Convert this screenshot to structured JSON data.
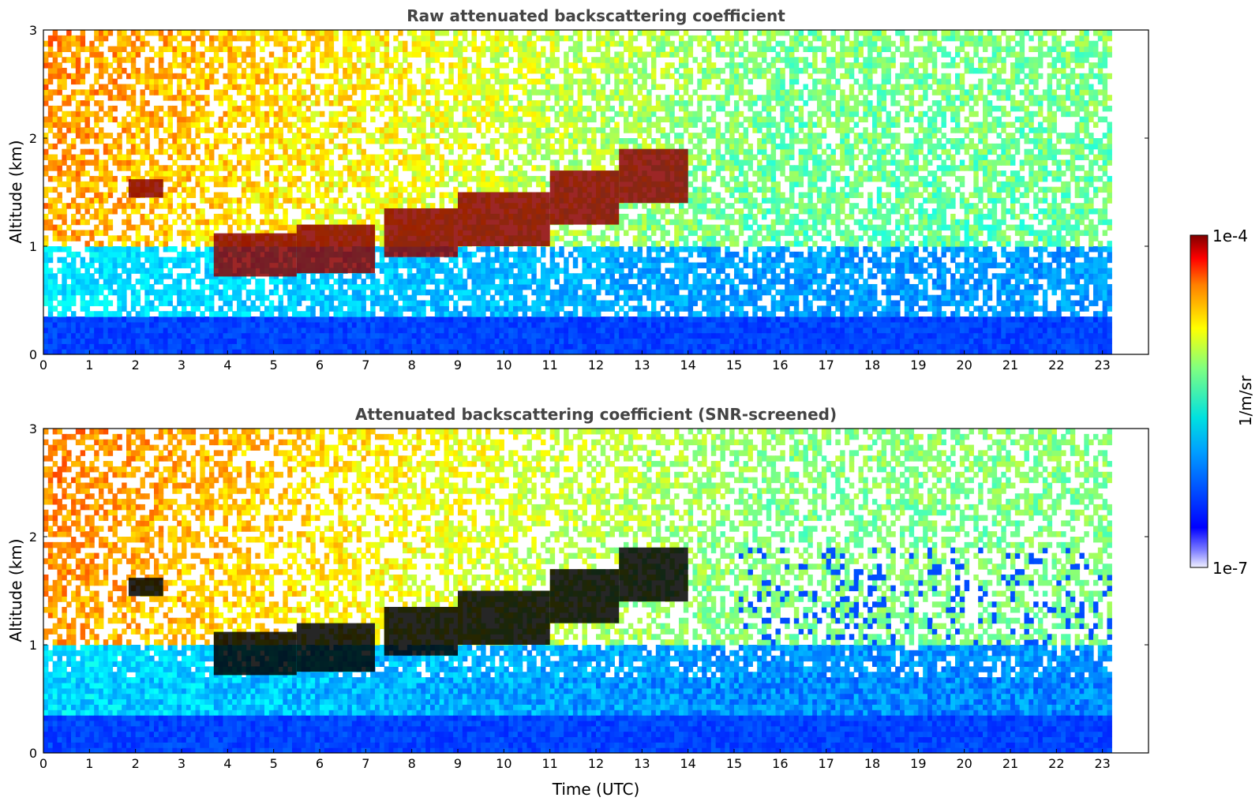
{
  "chart_data": [
    {
      "type": "heatmap",
      "title": "Raw attenuated backscattering coefficient",
      "xlabel": "",
      "ylabel": "Altitude (km)",
      "xlim": [
        0,
        24
      ],
      "ylim": [
        0,
        3
      ],
      "data_xlim": [
        0,
        23.2
      ],
      "x_ticks": [
        "0",
        "1",
        "2",
        "3",
        "4",
        "5",
        "6",
        "7",
        "8",
        "9",
        "10",
        "11",
        "12",
        "13",
        "14",
        "15",
        "16",
        "17",
        "18",
        "19",
        "20",
        "21",
        "22",
        "23"
      ],
      "y_ticks": [
        "0",
        "1",
        "2",
        "3"
      ],
      "grid": false,
      "screened": false,
      "cloud_layers": [
        {
          "x": [
            1.85,
            2.6
          ],
          "y": [
            1.45,
            1.62
          ]
        },
        {
          "x": [
            3.7,
            5.5
          ],
          "y": [
            0.72,
            1.12
          ]
        },
        {
          "x": [
            5.5,
            7.2
          ],
          "y": [
            0.75,
            1.2
          ]
        },
        {
          "x": [
            7.4,
            9.0
          ],
          "y": [
            0.9,
            1.35
          ]
        },
        {
          "x": [
            9.0,
            11.0
          ],
          "y": [
            1.0,
            1.5
          ]
        },
        {
          "x": [
            11.0,
            12.5
          ],
          "y": [
            1.2,
            1.7
          ]
        },
        {
          "x": [
            12.5,
            14.0
          ],
          "y": [
            1.4,
            1.9
          ]
        }
      ],
      "colorbar": {
        "label": "1/m/sr",
        "min_label": "1e-7",
        "max_label": "1e-4",
        "min": 1e-07,
        "max": 0.0001,
        "scale": "log",
        "colormap": "jet"
      }
    },
    {
      "type": "heatmap",
      "title": "Attenuated backscattering coefficient (SNR-screened)",
      "xlabel": "Time (UTC)",
      "ylabel": "Altitude (km)",
      "xlim": [
        0,
        24
      ],
      "ylim": [
        0,
        3
      ],
      "data_xlim": [
        0,
        23.2
      ],
      "x_ticks": [
        "0",
        "1",
        "2",
        "3",
        "4",
        "5",
        "6",
        "7",
        "8",
        "9",
        "10",
        "11",
        "12",
        "13",
        "14",
        "15",
        "16",
        "17",
        "18",
        "19",
        "20",
        "21",
        "22",
        "23"
      ],
      "y_ticks": [
        "0",
        "1",
        "2",
        "3"
      ],
      "grid": false,
      "screened": true,
      "cloud_layers": [
        {
          "x": [
            1.85,
            2.6
          ],
          "y": [
            1.45,
            1.62
          ]
        },
        {
          "x": [
            3.7,
            5.5
          ],
          "y": [
            0.72,
            1.12
          ]
        },
        {
          "x": [
            5.5,
            7.2
          ],
          "y": [
            0.75,
            1.2
          ]
        },
        {
          "x": [
            7.4,
            9.0
          ],
          "y": [
            0.9,
            1.35
          ]
        },
        {
          "x": [
            9.0,
            11.0
          ],
          "y": [
            1.0,
            1.5
          ]
        },
        {
          "x": [
            11.0,
            12.5
          ],
          "y": [
            1.2,
            1.7
          ]
        },
        {
          "x": [
            12.5,
            14.0
          ],
          "y": [
            1.4,
            1.9
          ]
        }
      ],
      "colorbar": {
        "label": "1/m/sr",
        "min_label": "1e-7",
        "max_label": "1e-4",
        "min": 1e-07,
        "max": 0.0001,
        "scale": "log",
        "colormap": "jet"
      }
    }
  ],
  "colors": {
    "cloud_raw": "#8b0000",
    "cloud_screened": "#000000",
    "title_text": "#444444"
  }
}
